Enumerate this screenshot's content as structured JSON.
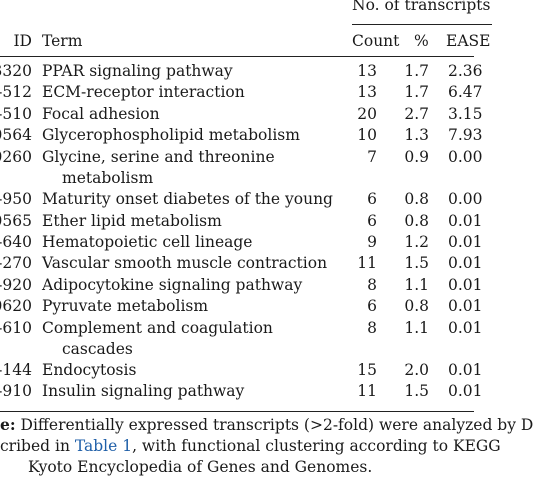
{
  "table": {
    "group_header": "No. of transcripts",
    "columns": {
      "id": "ID",
      "term": "Term",
      "count": "Count",
      "percent": "%",
      "ease": "EASE"
    },
    "rows": [
      {
        "id": "3320",
        "term": "PPAR signaling pathway",
        "term2": "",
        "count": "13",
        "percent": "1.7",
        "ease": "2.36"
      },
      {
        "id": "-512",
        "term": "ECM-receptor interaction",
        "term2": "",
        "count": "13",
        "percent": "1.7",
        "ease": "6.47"
      },
      {
        "id": "-510",
        "term": "Focal adhesion",
        "term2": "",
        "count": "20",
        "percent": "2.7",
        "ease": "3.15"
      },
      {
        "id": "0564",
        "term": "Glycerophospholipid metabolism",
        "term2": "",
        "count": "10",
        "percent": "1.3",
        "ease": "7.93"
      },
      {
        "id": "0260",
        "term": "Glycine, serine and threonine",
        "term2": "metabolism",
        "count": "7",
        "percent": "0.9",
        "ease": "0.00"
      },
      {
        "id": "-950",
        "term": "Maturity onset diabetes of the young",
        "term2": "",
        "count": "6",
        "percent": "0.8",
        "ease": "0.00"
      },
      {
        "id": "0565",
        "term": "Ether lipid metabolism",
        "term2": "",
        "count": "6",
        "percent": "0.8",
        "ease": "0.01"
      },
      {
        "id": "-640",
        "term": "Hematopoietic cell lineage",
        "term2": "",
        "count": "9",
        "percent": "1.2",
        "ease": "0.01"
      },
      {
        "id": "-270",
        "term": "Vascular smooth muscle contraction",
        "term2": "",
        "count": "11",
        "percent": "1.5",
        "ease": "0.01"
      },
      {
        "id": "-920",
        "term": "Adipocytokine signaling pathway",
        "term2": "",
        "count": "8",
        "percent": "1.1",
        "ease": "0.01"
      },
      {
        "id": "0620",
        "term": "Pyruvate metabolism",
        "term2": "",
        "count": "6",
        "percent": "0.8",
        "ease": "0.01"
      },
      {
        "id": "-610",
        "term": "Complement and coagulation",
        "term2": "cascades",
        "count": "8",
        "percent": "1.1",
        "ease": "0.01"
      },
      {
        "id": "-144",
        "term": "Endocytosis",
        "term2": "",
        "count": "15",
        "percent": "2.0",
        "ease": "0.01"
      },
      {
        "id": "-910",
        "term": "Insulin signaling pathway",
        "term2": "",
        "count": "11",
        "percent": "1.5",
        "ease": "0.01"
      }
    ]
  },
  "footnote": {
    "label": "e:",
    "line1": " Differentially expressed transcripts (>2-fold) were analyzed by D",
    "line2_pre": "cribed in ",
    "line2_link": "Table 1",
    "line2_post": ", with functional clustering according to KEGG",
    "line3": "Kyoto Encyclopedia of Genes and Genomes."
  }
}
